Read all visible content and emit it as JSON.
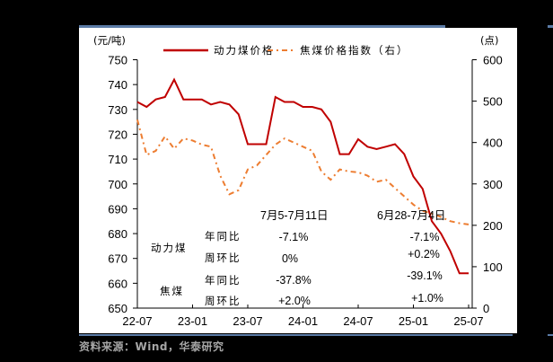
{
  "chart_data": {
    "type": "line",
    "title": "",
    "ylabel_left": "(元/吨)",
    "ylabel_right": "(点)",
    "ylim_left": [
      650,
      750
    ],
    "ylim_right": [
      0,
      600
    ],
    "yticks_left": [
      650,
      660,
      670,
      680,
      690,
      700,
      710,
      720,
      730,
      740,
      750
    ],
    "yticks_right": [
      0,
      100,
      200,
      300,
      400,
      500,
      600
    ],
    "xticks": [
      "22-07",
      "23-01",
      "23-07",
      "24-01",
      "24-07",
      "25-01",
      "25-07"
    ],
    "grid": false,
    "legend_position": "top",
    "series": [
      {
        "name": "动力煤价格",
        "axis": "left",
        "color": "#C00000",
        "style": "solid",
        "points": [
          [
            "22-07",
            733
          ],
          [
            "22-08",
            731
          ],
          [
            "22-09",
            734
          ],
          [
            "22-10",
            735
          ],
          [
            "22-11",
            742
          ],
          [
            "22-12",
            734
          ],
          [
            "23-01",
            734
          ],
          [
            "23-02",
            734
          ],
          [
            "23-03",
            732
          ],
          [
            "23-04",
            733
          ],
          [
            "23-05",
            732
          ],
          [
            "23-06",
            728
          ],
          [
            "23-07",
            716
          ],
          [
            "23-08",
            716
          ],
          [
            "23-09",
            716
          ],
          [
            "23-10",
            735
          ],
          [
            "23-11",
            733
          ],
          [
            "23-12",
            733
          ],
          [
            "24-01",
            731
          ],
          [
            "24-02",
            731
          ],
          [
            "24-03",
            730
          ],
          [
            "24-04",
            725
          ],
          [
            "24-05",
            712
          ],
          [
            "24-06",
            712
          ],
          [
            "24-07",
            718
          ],
          [
            "24-08",
            715
          ],
          [
            "24-09",
            714
          ],
          [
            "24-10",
            715
          ],
          [
            "24-11",
            716
          ],
          [
            "24-12",
            712
          ],
          [
            "25-01",
            703
          ],
          [
            "25-02",
            698
          ],
          [
            "25-03",
            685
          ],
          [
            "25-04",
            680
          ],
          [
            "25-05",
            673
          ],
          [
            "25-06",
            664
          ],
          [
            "25-07",
            664
          ]
        ]
      },
      {
        "name": "焦煤价格指数（右）",
        "axis": "right",
        "color": "#ED7D31",
        "style": "dash-dot",
        "points": [
          [
            "22-07",
            455
          ],
          [
            "22-08",
            370
          ],
          [
            "22-09",
            380
          ],
          [
            "22-10",
            415
          ],
          [
            "22-11",
            385
          ],
          [
            "22-12",
            410
          ],
          [
            "23-01",
            405
          ],
          [
            "23-02",
            395
          ],
          [
            "23-03",
            390
          ],
          [
            "23-04",
            320
          ],
          [
            "23-05",
            275
          ],
          [
            "23-06",
            285
          ],
          [
            "23-07",
            335
          ],
          [
            "23-08",
            345
          ],
          [
            "23-09",
            370
          ],
          [
            "23-10",
            395
          ],
          [
            "23-11",
            410
          ],
          [
            "23-12",
            400
          ],
          [
            "24-01",
            390
          ],
          [
            "24-02",
            380
          ],
          [
            "24-03",
            330
          ],
          [
            "24-04",
            310
          ],
          [
            "24-05",
            335
          ],
          [
            "24-06",
            330
          ],
          [
            "24-07",
            328
          ],
          [
            "24-08",
            320
          ],
          [
            "24-09",
            305
          ],
          [
            "24-10",
            310
          ],
          [
            "24-11",
            290
          ],
          [
            "24-12",
            270
          ],
          [
            "25-01",
            250
          ],
          [
            "25-02",
            235
          ],
          [
            "25-03",
            228
          ],
          [
            "25-04",
            220
          ],
          [
            "25-05",
            210
          ],
          [
            "25-06",
            205
          ],
          [
            "25-07",
            202
          ]
        ]
      }
    ],
    "annotation_table": {
      "periods": [
        "7月5-7月11日",
        "6月28-7月4日"
      ],
      "rows": [
        {
          "group": "动力煤",
          "metric": "年同比",
          "values": [
            "-7.1%",
            "-7.1%"
          ]
        },
        {
          "group": "动力煤",
          "metric": "周环比",
          "values": [
            "0%",
            "+0.2%"
          ]
        },
        {
          "group": "焦煤",
          "metric": "年同比",
          "values": [
            "-37.8%",
            "-39.1%"
          ]
        },
        {
          "group": "焦煤",
          "metric": "周环比",
          "values": [
            "+2.0%",
            "+1.0%"
          ]
        }
      ]
    }
  },
  "legend": {
    "series1": "动力煤价格",
    "series2": "焦煤价格指数（右）"
  },
  "axes": {
    "left_unit": "(元/吨)",
    "right_unit": "(点)"
  },
  "table": {
    "period1": "7月5-7月11日",
    "period2": "6月28-7月4日",
    "group1": "动力煤",
    "group2": "焦煤",
    "yoy": "年同比",
    "wow": "周环比",
    "c1": [
      "-7.1%",
      "0%",
      "-37.8%",
      "+2.0%"
    ],
    "c2": [
      "-7.1%",
      "+0.2%",
      "-39.1%",
      "+1.0%"
    ]
  },
  "source": "资料来源：Wind，华泰研究"
}
